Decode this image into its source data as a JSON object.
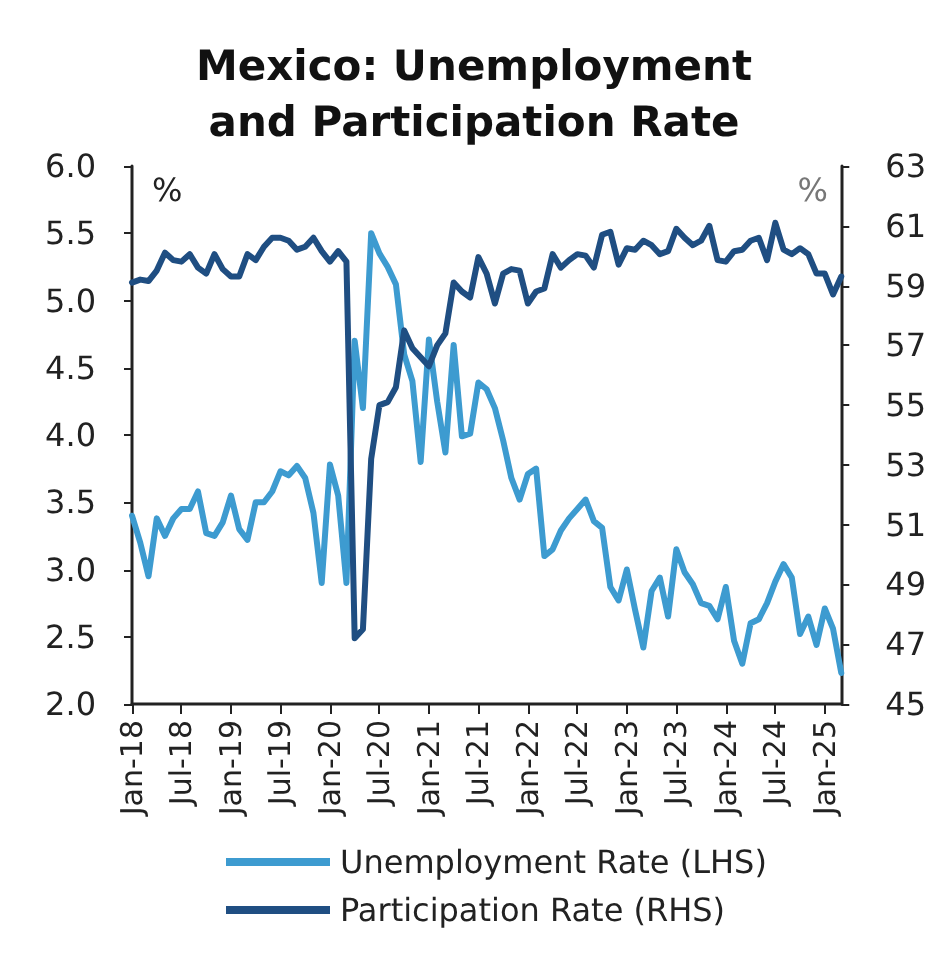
{
  "chart_data": {
    "type": "line",
    "title": "Mexico: Unemployment\nand Participation Rate",
    "categories": [
      "Jan-18",
      null,
      null,
      null,
      null,
      null,
      "Jul-18",
      null,
      null,
      null,
      null,
      null,
      "Jan-19",
      null,
      null,
      null,
      null,
      null,
      "Jul-19",
      null,
      null,
      null,
      null,
      null,
      "Jan-20",
      null,
      null,
      null,
      null,
      null,
      "Jul-20",
      null,
      null,
      null,
      null,
      null,
      "Jan-21",
      null,
      null,
      null,
      null,
      null,
      "Jul-21",
      null,
      null,
      null,
      null,
      null,
      "Jan-22",
      null,
      null,
      null,
      null,
      null,
      "Jul-22",
      null,
      null,
      null,
      null,
      null,
      "Jan-23",
      null,
      null,
      null,
      null,
      null,
      "Jul-23",
      null,
      null,
      null,
      null,
      null,
      "Jan-24",
      null,
      null,
      null,
      null,
      null,
      "Jul-24",
      null,
      null,
      null,
      null,
      null,
      "Jan-25",
      null,
      null
    ],
    "series": [
      {
        "name": "Unemployment Rate (LHS)",
        "color": "#3d9bd0",
        "values": [
          3.4,
          3.2,
          2.95,
          3.38,
          3.25,
          3.38,
          3.45,
          3.45,
          3.58,
          3.27,
          3.25,
          3.35,
          3.55,
          3.3,
          3.22,
          3.5,
          3.5,
          3.58,
          3.73,
          3.7,
          3.77,
          3.68,
          3.42,
          2.9,
          3.78,
          3.55,
          2.9,
          4.7,
          4.2,
          5.5,
          5.35,
          5.25,
          5.12,
          4.6,
          4.4,
          3.8,
          4.71,
          4.25,
          3.87,
          4.67,
          3.99,
          4.01,
          4.39,
          4.34,
          4.2,
          3.96,
          3.68,
          3.52,
          3.71,
          3.75,
          3.1,
          3.15,
          3.29,
          3.38,
          3.45,
          3.52,
          3.36,
          3.31,
          2.87,
          2.77,
          3.0,
          2.7,
          2.42,
          2.84,
          2.94,
          2.65,
          3.15,
          2.98,
          2.89,
          2.75,
          2.73,
          2.63,
          2.87,
          2.47,
          2.3,
          2.6,
          2.63,
          2.75,
          2.91,
          3.04,
          2.94,
          2.52,
          2.65,
          2.44,
          2.71,
          2.56,
          2.23
        ]
      },
      {
        "name": "Participation Rate (RHS)",
        "color": "#1f4e82",
        "axis": "y2",
        "values": [
          59.1,
          59.2,
          59.15,
          59.5,
          60.1,
          59.85,
          59.8,
          60.05,
          59.6,
          59.4,
          60.05,
          59.55,
          59.3,
          59.3,
          60.05,
          59.85,
          60.3,
          60.6,
          60.6,
          60.5,
          60.2,
          60.3,
          60.6,
          60.15,
          59.8,
          60.15,
          59.8,
          47.2,
          47.5,
          53.2,
          55.0,
          55.1,
          55.6,
          57.5,
          56.9,
          56.6,
          56.3,
          57.0,
          57.4,
          59.1,
          58.8,
          58.6,
          59.95,
          59.4,
          58.4,
          59.4,
          59.55,
          59.5,
          58.4,
          58.8,
          58.9,
          60.05,
          59.6,
          59.85,
          60.05,
          60.0,
          59.6,
          60.7,
          60.8,
          59.7,
          60.25,
          60.2,
          60.5,
          60.35,
          60.05,
          60.15,
          60.9,
          60.6,
          60.35,
          60.5,
          61.0,
          59.85,
          59.8,
          60.15,
          60.2,
          60.5,
          60.6,
          59.85,
          61.1,
          60.2,
          60.05,
          60.25,
          60.05,
          59.4,
          59.4,
          58.7,
          59.3
        ]
      }
    ],
    "ylim": [
      2,
      6
    ],
    "yticks": [
      {
        "value": 2,
        "label": "2.0"
      },
      {
        "value": 2.5,
        "label": "2.5"
      },
      {
        "value": 3,
        "label": "3.0"
      },
      {
        "value": 3.5,
        "label": "3.5"
      },
      {
        "value": 4,
        "label": "4.0"
      },
      {
        "value": 4.5,
        "label": "4.5"
      },
      {
        "value": 5,
        "label": "5.0"
      },
      {
        "value": 5.5,
        "label": "5.5"
      },
      {
        "value": 6,
        "label": "6.0"
      }
    ],
    "y2lim": [
      45,
      63
    ],
    "y2ticks": [
      45,
      47,
      49,
      51,
      53,
      55,
      57,
      59,
      61,
      63
    ],
    "annotations": [
      "%",
      "%"
    ],
    "grid": false,
    "legend": "bottom",
    "marker": "none",
    "line_style": "solid"
  }
}
